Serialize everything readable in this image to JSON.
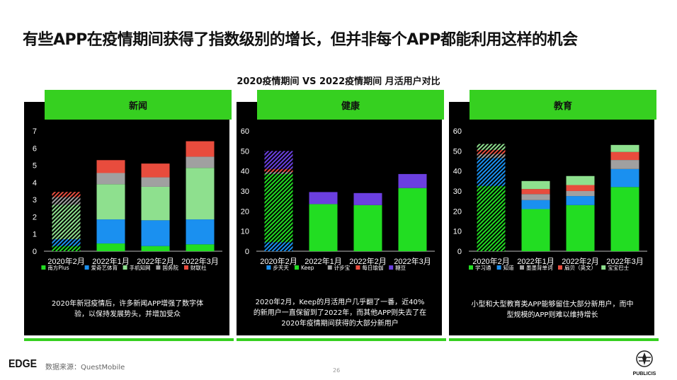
{
  "title": "有些APP在疫情期间获得了指数级别的增长，但并非每个APP都能利用这样的机会",
  "subtitle": "2020疫情期间 VS 2022疫情期间 月活用户对比",
  "footer": {
    "source": "数据来源：QuestMobile",
    "page": "26",
    "brand_left": "EDGE",
    "brand_right": "PUBLICIS"
  },
  "panels": [
    {
      "tab": "新闻",
      "description": "2020年新冠疫情后，许多新闻APP增强了数字体验，以保持发展势头，并增加受众"
    },
    {
      "tab": "健康",
      "description": "2020年2月，Keep的月活用户几乎翻了一番，近40%的新用户一直保留到了2022年，而其他APP则失去了在2020年疫情期间获得的大部分新用户"
    },
    {
      "tab": "教育",
      "description": "小型和大型教育类APP能够留住大部分新用户，而中型规模的APP则难以维持增长"
    }
  ],
  "chart_data": [
    {
      "type": "bar",
      "stacked": true,
      "categories": [
        "2020年2月",
        "2022年1月",
        "2022年2月",
        "2022年3月"
      ],
      "hatched_categories": [
        "2020年2月"
      ],
      "ylim": [
        0,
        7
      ],
      "yticks": [
        0,
        1,
        2,
        3,
        4,
        5,
        6,
        7
      ],
      "grid": false,
      "legend_position": "bottom",
      "series": [
        {
          "name": "南方Plus",
          "color": "#22dd22",
          "values": [
            0.3,
            0.45,
            0.3,
            0.4
          ]
        },
        {
          "name": "爱奇艺体育",
          "color": "#1a90f0",
          "values": [
            0.4,
            1.4,
            1.5,
            1.45
          ]
        },
        {
          "name": "手机知网",
          "color": "#8ee08e",
          "values": [
            2.0,
            2.05,
            1.95,
            3.0
          ]
        },
        {
          "name": "国务院",
          "color": "#a0a0a0",
          "values": [
            0.45,
            0.65,
            0.55,
            0.65
          ]
        },
        {
          "name": "财联社",
          "color": "#e84c3d",
          "values": [
            0.3,
            0.75,
            0.8,
            0.9
          ]
        }
      ]
    },
    {
      "type": "bar",
      "stacked": true,
      "categories": [
        "2020年2月",
        "2022年1月",
        "2022年2月",
        "2022年3月"
      ],
      "hatched_categories": [
        "2020年2月"
      ],
      "ylim": [
        0,
        60
      ],
      "yticks": [
        0,
        10,
        20,
        30,
        40,
        50,
        60
      ],
      "grid": false,
      "legend_position": "bottom",
      "series": [
        {
          "name": "步天天",
          "color": "#1a90f0",
          "values": [
            4.5,
            0,
            0,
            0
          ]
        },
        {
          "name": "Keep",
          "color": "#22dd22",
          "values": [
            34,
            23.5,
            23,
            31.5
          ]
        },
        {
          "name": "计步宝",
          "color": "#a0a0a0",
          "values": [
            1,
            0,
            0,
            0
          ]
        },
        {
          "name": "每日瑜伽",
          "color": "#e84c3d",
          "values": [
            1.5,
            0,
            0,
            0
          ]
        },
        {
          "name": "糖豆",
          "color": "#6b3fe0",
          "values": [
            9,
            6,
            6,
            7
          ]
        }
      ]
    },
    {
      "type": "bar",
      "stacked": true,
      "categories": [
        "2020年2月",
        "2022年1月",
        "2022年2月",
        "2022年3月"
      ],
      "hatched_categories": [
        "2020年2月"
      ],
      "ylim": [
        0,
        60
      ],
      "yticks": [
        0,
        10,
        20,
        30,
        40,
        50,
        60
      ],
      "grid": false,
      "legend_position": "bottom",
      "series": [
        {
          "name": "学习通",
          "color": "#22dd22",
          "values": [
            32.5,
            21,
            23,
            32
          ]
        },
        {
          "name": "知道",
          "color": "#1a90f0",
          "values": [
            14,
            4.5,
            4.5,
            9
          ]
        },
        {
          "name": "墨墨背单词",
          "color": "#a0a0a0",
          "values": [
            2,
            3,
            2.5,
            4.5
          ]
        },
        {
          "name": "扇贝（英文）",
          "color": "#e84c3d",
          "values": [
            2,
            2.5,
            3,
            4
          ]
        },
        {
          "name": "宝宝巴士",
          "color": "#8ee08e",
          "values": [
            3,
            4,
            4.5,
            3.5
          ]
        }
      ]
    }
  ]
}
